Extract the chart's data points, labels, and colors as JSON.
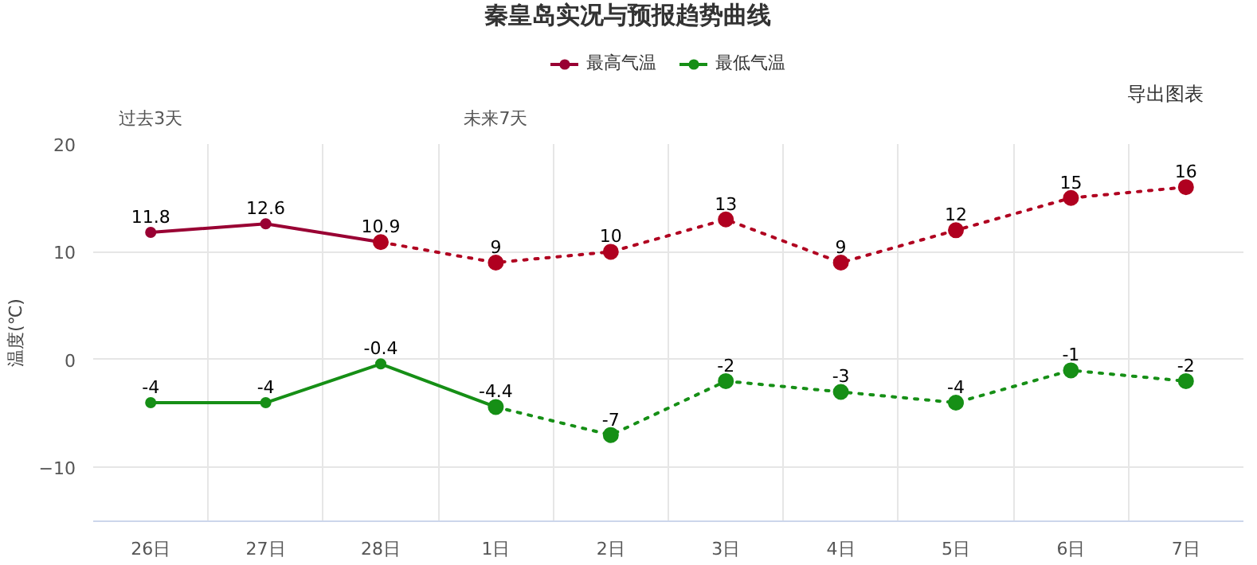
{
  "chart_data": {
    "type": "line",
    "title": "秦皇岛实况与预报趋势曲线",
    "ylabel": "温度(℃)",
    "categories": [
      "26日",
      "27日",
      "28日",
      "1日",
      "2日",
      "3日",
      "4日",
      "5日",
      "6日",
      "7日"
    ],
    "series": [
      {
        "name": "最高气温",
        "color": "#990033",
        "line_style": "solid",
        "values": [
          11.8,
          12.6,
          10.9,
          null,
          null,
          null,
          null,
          null,
          null,
          null
        ],
        "value_labels": [
          "11.8",
          "12.6",
          "10.9",
          null,
          null,
          null,
          null,
          null,
          null,
          null
        ]
      },
      {
        "color": "#b00020",
        "line_style": "dotted",
        "values": [
          null,
          null,
          10.9,
          9,
          10,
          13,
          9,
          12,
          15,
          16
        ],
        "value_labels": [
          null,
          null,
          null,
          "9",
          "10",
          "13",
          "9",
          "12",
          "15",
          "16"
        ]
      },
      {
        "name": "最低气温",
        "color": "#168f16",
        "line_style": "solid",
        "values": [
          -4,
          -4,
          -0.4,
          -4.4,
          null,
          null,
          null,
          null,
          null,
          null
        ],
        "value_labels": [
          "-4",
          "-4",
          "-0.4",
          "-4.4",
          null,
          null,
          null,
          null,
          null,
          null
        ]
      },
      {
        "color": "#168f16",
        "line_style": "dotted",
        "values": [
          null,
          null,
          null,
          -4.4,
          -7,
          -2,
          -3,
          -4,
          -1,
          -2
        ],
        "value_labels": [
          null,
          null,
          null,
          null,
          "-7",
          "-2",
          "-3",
          "-4",
          "-1",
          "-2"
        ]
      }
    ],
    "ylim": [
      -15,
      20
    ],
    "yticks": [
      -10,
      0,
      10,
      20
    ],
    "grid": true,
    "legend": "top",
    "marker": "circle",
    "annotations": [
      "过去3天",
      "未来7天",
      "导出图表"
    ]
  }
}
